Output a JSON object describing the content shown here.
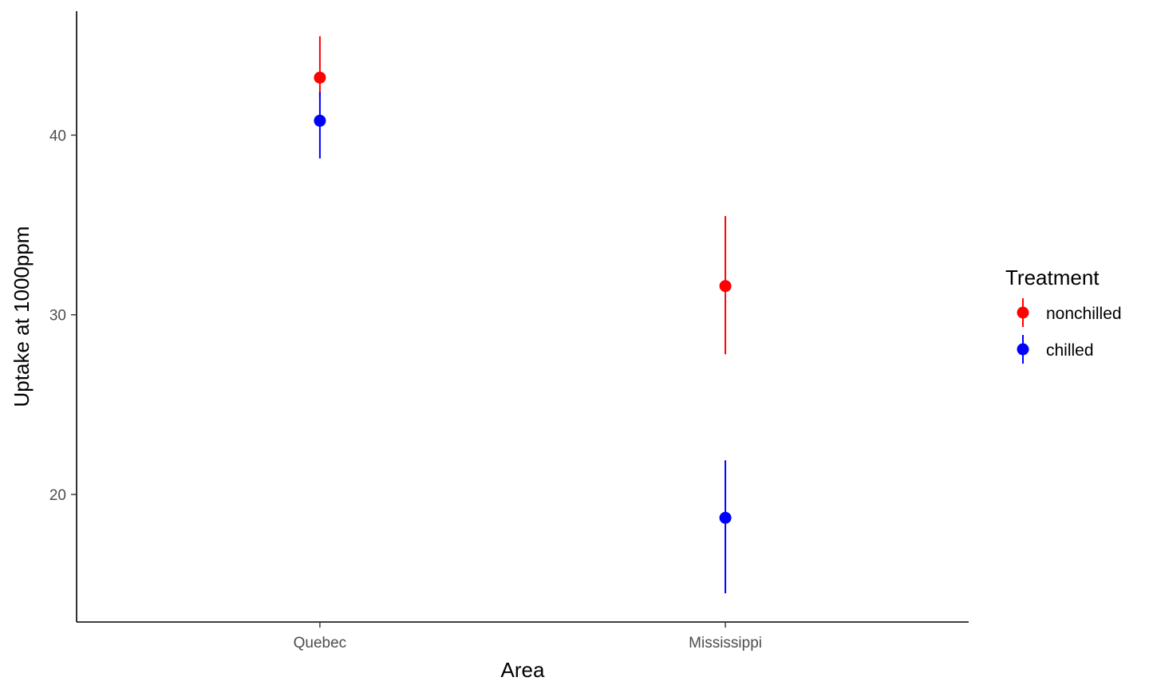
{
  "chart_data": {
    "type": "scatter",
    "xlabel": "Area",
    "ylabel": "Uptake at 1000ppm",
    "categories": [
      "Quebec",
      "Mississippi"
    ],
    "ylim": [
      12.9,
      46.9
    ],
    "yticks": [
      20,
      30,
      40
    ],
    "grid": false,
    "legend": {
      "title": "Treatment",
      "position": "right"
    },
    "series": [
      {
        "name": "nonchilled",
        "color": "#ff0000",
        "values": [
          43.2,
          31.6
        ],
        "lower": [
          42.1,
          27.8
        ],
        "upper": [
          45.5,
          35.5
        ]
      },
      {
        "name": "chilled",
        "color": "#0000ff",
        "values": [
          40.8,
          18.7
        ],
        "lower": [
          38.7,
          14.5
        ],
        "upper": [
          42.4,
          21.9
        ]
      }
    ]
  }
}
